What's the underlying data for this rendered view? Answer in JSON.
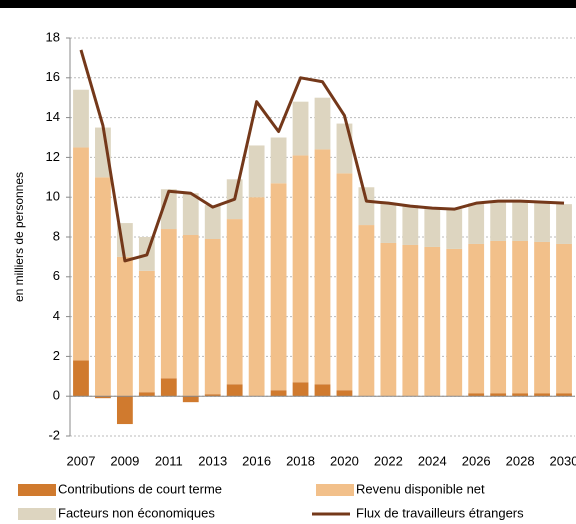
{
  "chart_data": {
    "type": "stacked_bar_line",
    "y_axis_label": "en milliers de personnes",
    "categories": [
      "2007",
      null,
      "2009",
      null,
      "2011",
      null,
      "2013",
      null,
      "2016",
      null,
      "2018",
      null,
      "2020",
      null,
      "2022",
      null,
      "2024",
      null,
      "2026",
      null,
      "2028",
      null,
      "2030"
    ],
    "series": [
      {
        "name": "Contributions de court terme",
        "color": "#d07a2e",
        "kind": "bar",
        "values": [
          1.8,
          -0.1,
          -1.4,
          0.2,
          0.9,
          -0.3,
          0.1,
          0.6,
          0,
          0.3,
          0.7,
          0.6,
          0.3,
          0,
          0,
          0,
          0,
          0,
          0.15,
          0.15,
          0.15,
          0.15,
          0.15
        ]
      },
      {
        "name": "Revenu disponible net",
        "color": "#f2c08a",
        "kind": "bar",
        "values": [
          10.7,
          11.0,
          7.0,
          6.1,
          7.5,
          8.1,
          7.8,
          8.3,
          10.0,
          10.4,
          11.4,
          11.8,
          10.9,
          8.6,
          7.7,
          7.6,
          7.5,
          7.4,
          7.5,
          7.65,
          7.65,
          7.6,
          7.5
        ]
      },
      {
        "name": "Facteurs non économiques",
        "color": "#ddd5c0",
        "kind": "bar",
        "values": [
          2.9,
          2.5,
          1.7,
          1.7,
          2.0,
          2.1,
          1.7,
          2.0,
          2.6,
          2.3,
          2.7,
          2.6,
          2.5,
          1.9,
          2.0,
          2.0,
          2.0,
          2.0,
          2.05,
          2.0,
          2.0,
          2.0,
          2.0
        ]
      },
      {
        "name": "Flux de travailleurs étrangers",
        "color": "#74381a",
        "kind": "line",
        "values": [
          17.4,
          13.6,
          6.8,
          7.1,
          10.3,
          10.2,
          9.5,
          9.9,
          14.8,
          13.3,
          16.0,
          15.8,
          14.1,
          9.8,
          9.7,
          9.55,
          9.45,
          9.4,
          9.7,
          9.8,
          9.8,
          9.75,
          9.7
        ]
      }
    ],
    "ylim": [
      -2,
      18
    ],
    "yticks": [
      -2,
      0,
      2,
      4,
      6,
      8,
      10,
      12,
      14,
      16,
      18
    ],
    "grid": true,
    "legend": "bottom"
  }
}
